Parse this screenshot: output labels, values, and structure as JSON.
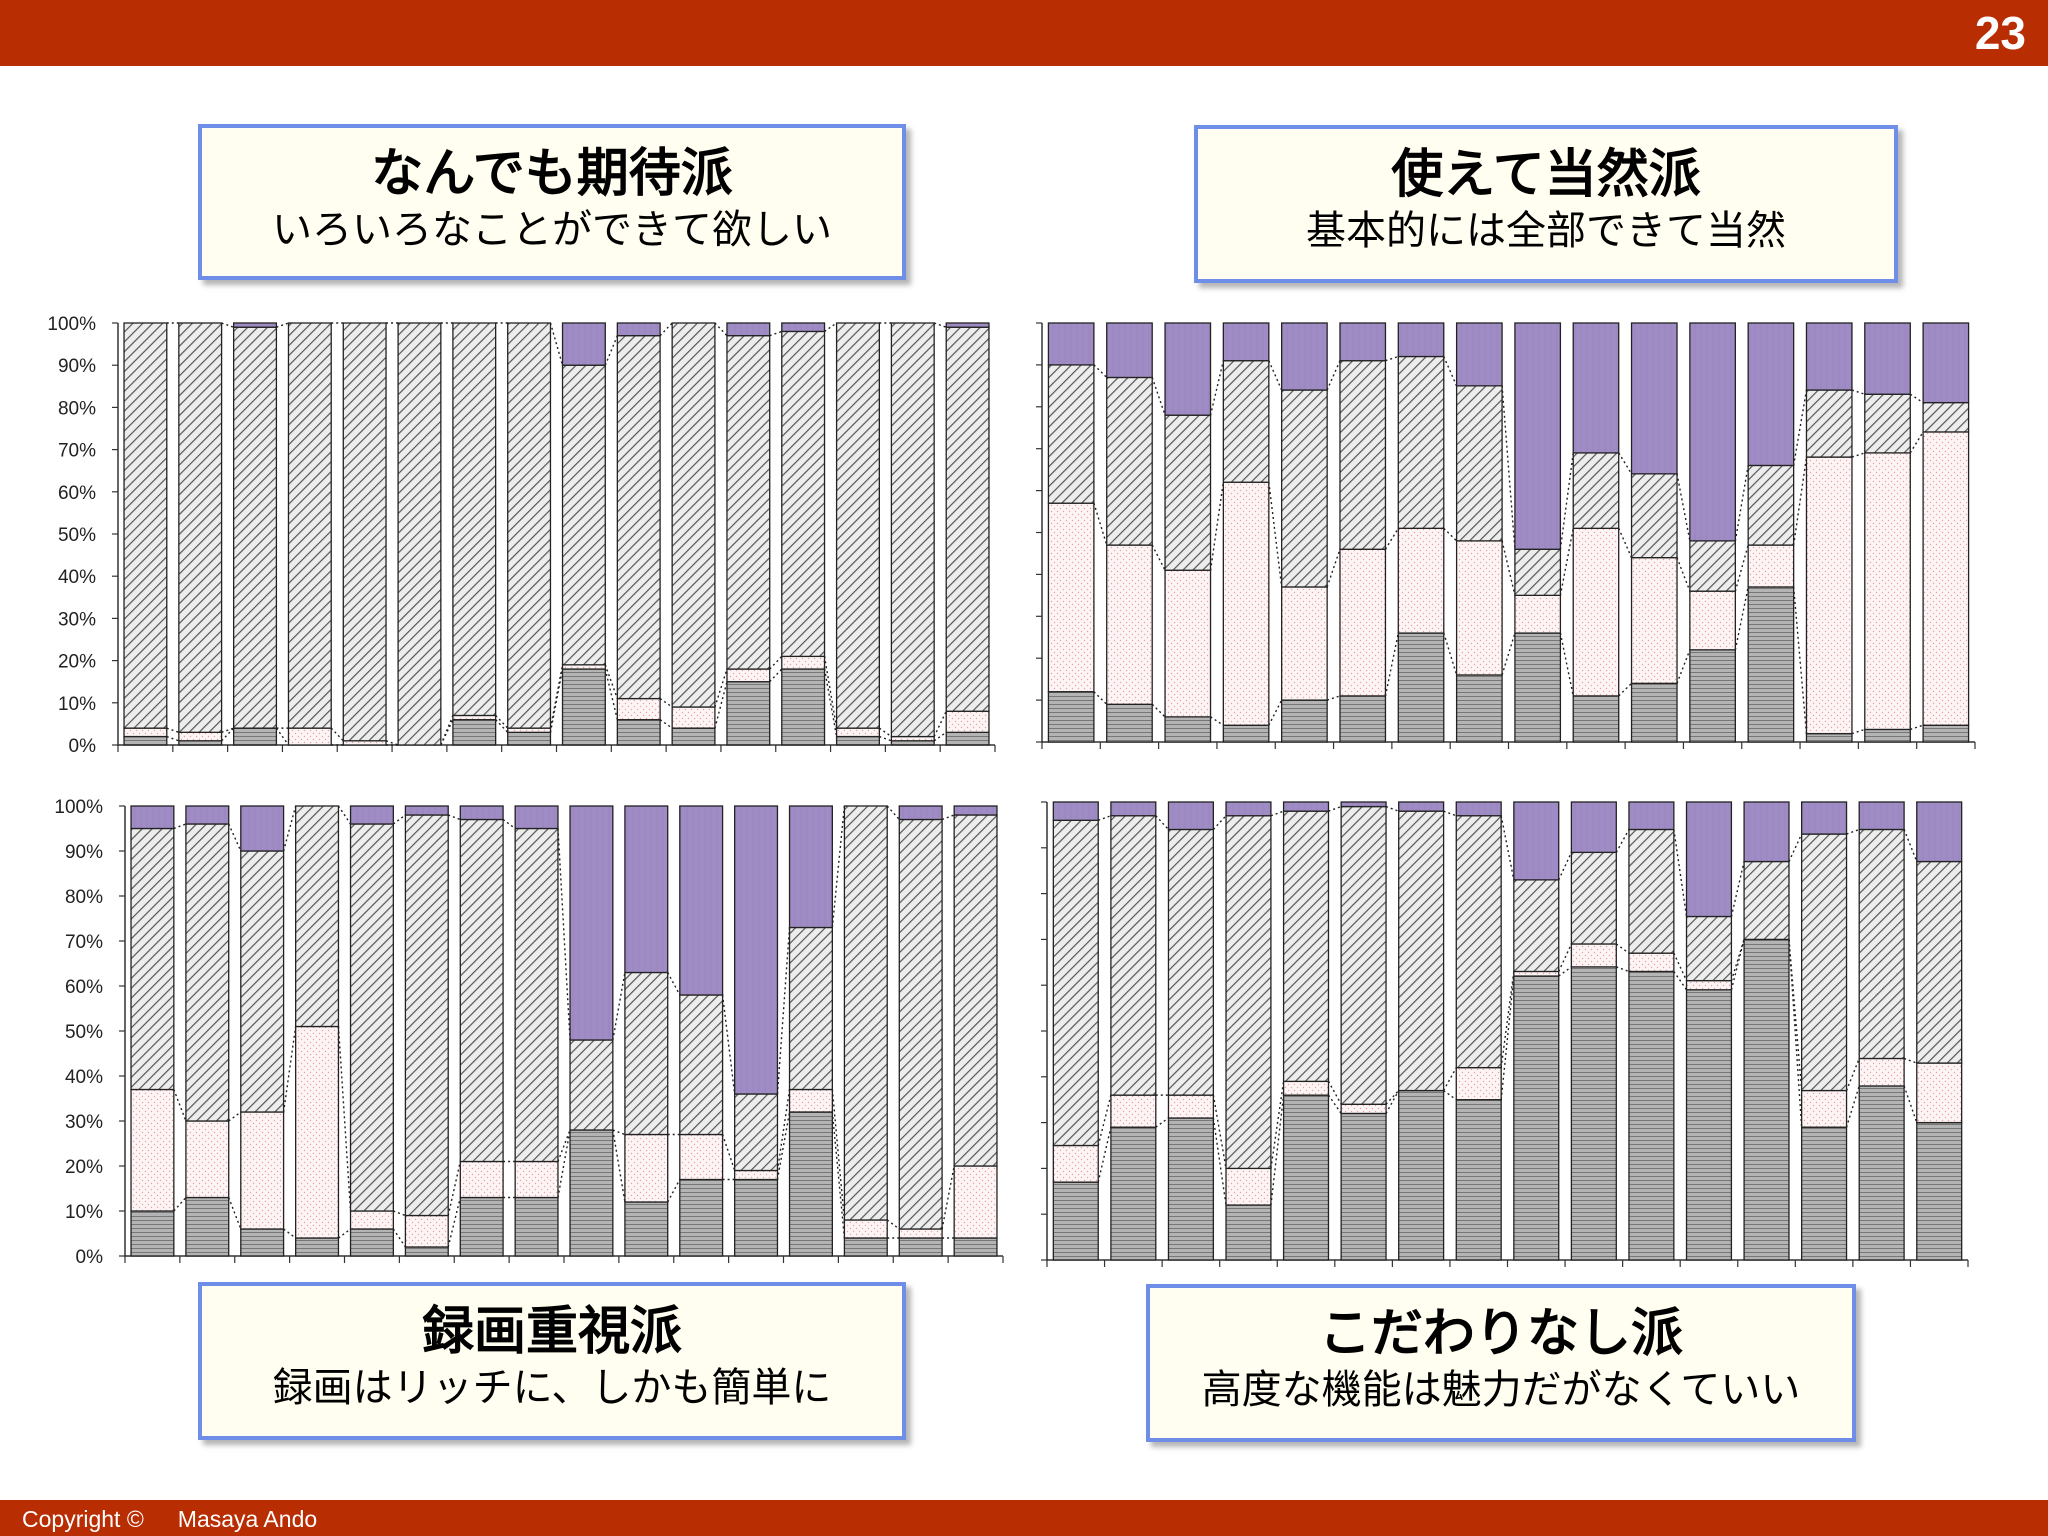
{
  "page_number": "23",
  "footer": {
    "copyright": "Copyright ©",
    "author": "Masaya Ando"
  },
  "boxes": [
    {
      "title": "なんでも期待派",
      "subtitle": "いろいろなことができて欲しい"
    },
    {
      "title": "使えて当然派",
      "subtitle": "基本的には全部できて当然"
    },
    {
      "title": "録画重視派",
      "subtitle": "録画はリッチに、しかも簡単に"
    },
    {
      "title": "こだわりなし派",
      "subtitle": "高度な機能は魅力だがなくていい"
    }
  ],
  "colors": {
    "bar_header": "#b92d02",
    "box_border": "#6f8ee8",
    "box_fill": "#fffef0",
    "top_segment": "#a08cc4",
    "horizontal_lines_segment": "#aaaaaa",
    "dotted_segment": "#fdf3f3",
    "hatched_segment": "#bbbbbb"
  },
  "chart_data": [
    {
      "type": "bar",
      "stacked": true,
      "ylim": [
        0,
        100
      ],
      "yticks": [
        "0%",
        "10%",
        "20%",
        "30%",
        "40%",
        "50%",
        "60%",
        "70%",
        "80%",
        "90%",
        "100%"
      ],
      "series": [
        {
          "values": [
            2,
            1,
            4,
            0,
            0,
            0,
            6,
            3,
            18,
            6,
            4,
            15,
            18,
            2,
            1,
            3
          ]
        },
        {
          "values": [
            2,
            2,
            0,
            4,
            1,
            0,
            1,
            1,
            1,
            5,
            5,
            3,
            3,
            2,
            1,
            5
          ]
        },
        {
          "values": [
            96,
            97,
            95,
            96,
            99,
            100,
            93,
            96,
            71,
            86,
            91,
            79,
            77,
            96,
            98,
            91
          ]
        },
        {
          "values": [
            0,
            0,
            1,
            0,
            0,
            0,
            0,
            0,
            10,
            3,
            0,
            3,
            2,
            0,
            0,
            1
          ]
        }
      ]
    },
    {
      "type": "bar",
      "stacked": true,
      "ylim": [
        0,
        100
      ],
      "yticks": [],
      "series": [
        {
          "values": [
            12,
            9,
            6,
            4,
            10,
            11,
            26,
            16,
            26,
            11,
            14,
            22,
            37,
            2,
            3,
            4
          ]
        },
        {
          "values": [
            45,
            38,
            35,
            58,
            27,
            35,
            25,
            32,
            9,
            40,
            30,
            14,
            10,
            66,
            66,
            70
          ]
        },
        {
          "values": [
            33,
            40,
            37,
            29,
            47,
            45,
            41,
            37,
            11,
            18,
            20,
            12,
            19,
            16,
            14,
            7
          ]
        },
        {
          "values": [
            10,
            13,
            22,
            9,
            16,
            9,
            8,
            15,
            54,
            31,
            36,
            52,
            34,
            16,
            17,
            19
          ]
        }
      ]
    },
    {
      "type": "bar",
      "stacked": true,
      "ylim": [
        0,
        100
      ],
      "yticks": [
        "0%",
        "10%",
        "20%",
        "30%",
        "40%",
        "50%",
        "60%",
        "70%",
        "80%",
        "90%",
        "100%"
      ],
      "series": [
        {
          "values": [
            10,
            13,
            6,
            4,
            6,
            2,
            13,
            13,
            28,
            12,
            17,
            17,
            32,
            4,
            4,
            4
          ]
        },
        {
          "values": [
            27,
            17,
            26,
            47,
            4,
            7,
            8,
            8,
            0,
            15,
            10,
            2,
            5,
            4,
            2,
            16
          ]
        },
        {
          "values": [
            58,
            66,
            58,
            49,
            86,
            89,
            76,
            74,
            20,
            36,
            31,
            17,
            36,
            92,
            91,
            78
          ]
        },
        {
          "values": [
            5,
            4,
            10,
            0,
            4,
            2,
            3,
            5,
            52,
            37,
            42,
            64,
            27,
            0,
            3,
            2
          ]
        }
      ]
    },
    {
      "type": "bar",
      "stacked": true,
      "ylim": [
        0,
        100
      ],
      "yticks": [],
      "series": [
        {
          "values": [
            17,
            29,
            31,
            12,
            36,
            32,
            37,
            35,
            62,
            64,
            63,
            59,
            70,
            29,
            38,
            30
          ]
        },
        {
          "values": [
            8,
            7,
            5,
            8,
            3,
            2,
            0,
            7,
            1,
            5,
            4,
            2,
            0,
            8,
            6,
            13
          ]
        },
        {
          "values": [
            71,
            61,
            58,
            77,
            59,
            65,
            61,
            55,
            20,
            20,
            27,
            14,
            17,
            56,
            50,
            44
          ]
        },
        {
          "values": [
            4,
            3,
            6,
            3,
            2,
            1,
            2,
            3,
            17,
            11,
            6,
            25,
            13,
            7,
            6,
            13
          ]
        }
      ]
    }
  ]
}
